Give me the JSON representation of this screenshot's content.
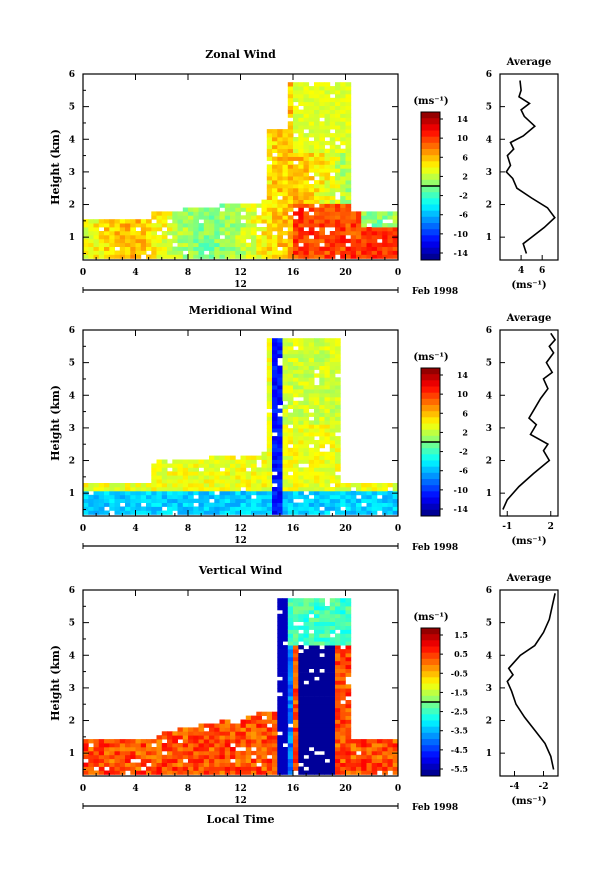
{
  "chart_data": [
    {
      "type": "heatmap",
      "title": "Zonal Wind",
      "ylabel": "Height (km)",
      "ylim": [
        0.3,
        6
      ],
      "xlim": [
        0,
        24
      ],
      "x_ticks": [
        "0",
        "4",
        "8",
        "12",
        "16",
        "20",
        "0"
      ],
      "y_ticks": [
        "1",
        "2",
        "3",
        "4",
        "5",
        "6"
      ],
      "date_marker": "12",
      "date_label": "Feb 1998",
      "colorbar": {
        "unit": "(ms⁻¹)",
        "ticks": [
          "14",
          "10",
          "6",
          "2",
          "-2",
          "-6",
          "-10",
          "-14"
        ],
        "range": [
          -16,
          16
        ]
      },
      "average": {
        "title": "Average",
        "xlabel": "(ms⁻¹)",
        "x_ticks": [
          "4",
          "6"
        ],
        "xlim": [
          2,
          7.5
        ],
        "points": [
          [
            4.5,
            0.5
          ],
          [
            4.2,
            0.8
          ],
          [
            5.0,
            1.0
          ],
          [
            6.2,
            1.3
          ],
          [
            7.2,
            1.6
          ],
          [
            6.5,
            1.9
          ],
          [
            5.0,
            2.2
          ],
          [
            3.6,
            2.5
          ],
          [
            3.2,
            2.8
          ],
          [
            2.6,
            3.0
          ],
          [
            3.0,
            3.2
          ],
          [
            2.7,
            3.5
          ],
          [
            3.3,
            3.7
          ],
          [
            3.0,
            3.9
          ],
          [
            4.2,
            4.1
          ],
          [
            5.3,
            4.4
          ],
          [
            4.3,
            4.7
          ],
          [
            4.0,
            4.9
          ],
          [
            4.8,
            5.1
          ],
          [
            3.8,
            5.3
          ],
          [
            4.0,
            5.5
          ],
          [
            3.9,
            5.8
          ]
        ]
      }
    },
    {
      "type": "heatmap",
      "title": "Meridional Wind",
      "ylabel": "Height (km)",
      "ylim": [
        0.3,
        6
      ],
      "xlim": [
        0,
        24
      ],
      "x_ticks": [
        "0",
        "4",
        "8",
        "12",
        "16",
        "20",
        "0"
      ],
      "y_ticks": [
        "1",
        "2",
        "3",
        "4",
        "5",
        "6"
      ],
      "date_marker": "12",
      "date_label": "Feb 1998",
      "colorbar": {
        "unit": "(ms⁻¹)",
        "ticks": [
          "14",
          "10",
          "6",
          "2",
          "-2",
          "-6",
          "-10",
          "-14"
        ],
        "range": [
          -16,
          16
        ]
      },
      "average": {
        "title": "Average",
        "xlabel": "(ms⁻¹)",
        "x_ticks": [
          "-1",
          "2"
        ],
        "xlim": [
          -1.5,
          2.5
        ],
        "points": [
          [
            -1.3,
            0.5
          ],
          [
            -1.0,
            0.8
          ],
          [
            -0.2,
            1.2
          ],
          [
            0.8,
            1.6
          ],
          [
            1.9,
            2.0
          ],
          [
            1.5,
            2.3
          ],
          [
            1.8,
            2.5
          ],
          [
            0.6,
            2.8
          ],
          [
            1.0,
            3.1
          ],
          [
            0.5,
            3.3
          ],
          [
            0.9,
            3.6
          ],
          [
            1.3,
            3.9
          ],
          [
            1.8,
            4.2
          ],
          [
            1.5,
            4.5
          ],
          [
            2.1,
            4.7
          ],
          [
            1.7,
            5.0
          ],
          [
            2.2,
            5.3
          ],
          [
            1.9,
            5.5
          ],
          [
            2.3,
            5.7
          ],
          [
            2.0,
            5.9
          ]
        ]
      }
    },
    {
      "type": "heatmap",
      "title": "Vertical Wind",
      "ylabel": "Height (km)",
      "xlabel": "Local Time",
      "ylim": [
        0.3,
        6
      ],
      "xlim": [
        0,
        24
      ],
      "x_ticks": [
        "0",
        "4",
        "8",
        "12",
        "16",
        "20",
        "0"
      ],
      "y_ticks": [
        "1",
        "2",
        "3",
        "4",
        "5",
        "6"
      ],
      "date_marker": "12",
      "date_label": "Feb 1998",
      "colorbar": {
        "unit": "(ms⁻¹)",
        "ticks": [
          "1.5",
          "0.5",
          "-0.5",
          "-1.5",
          "-2.5",
          "-3.5",
          "-4.5",
          "-5.5"
        ],
        "range": [
          -6,
          2
        ]
      },
      "average": {
        "title": "Average",
        "xlabel": "(ms⁻¹)",
        "x_ticks": [
          "-4",
          "-2"
        ],
        "xlim": [
          -5,
          -1
        ],
        "points": [
          [
            -1.3,
            0.5
          ],
          [
            -1.5,
            0.9
          ],
          [
            -1.9,
            1.3
          ],
          [
            -2.6,
            1.7
          ],
          [
            -3.3,
            2.1
          ],
          [
            -3.9,
            2.5
          ],
          [
            -4.2,
            2.9
          ],
          [
            -4.5,
            3.2
          ],
          [
            -4.1,
            3.4
          ],
          [
            -4.4,
            3.6
          ],
          [
            -4.0,
            3.8
          ],
          [
            -3.6,
            4.0
          ],
          [
            -2.6,
            4.3
          ],
          [
            -2.0,
            4.7
          ],
          [
            -1.6,
            5.1
          ],
          [
            -1.4,
            5.5
          ],
          [
            -1.2,
            5.9
          ]
        ]
      }
    }
  ]
}
